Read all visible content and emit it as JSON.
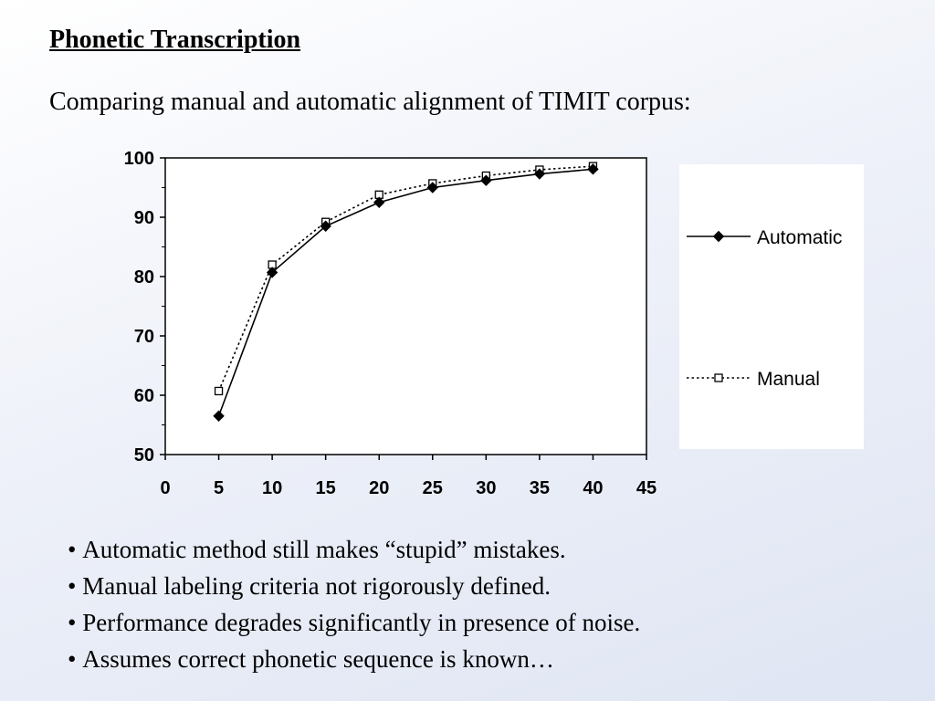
{
  "slide": {
    "title": "Phonetic Transcription",
    "subtitle": "Comparing manual and automatic alignment of TIMIT corpus:"
  },
  "chart_data": {
    "type": "line",
    "x": [
      5,
      10,
      15,
      20,
      25,
      30,
      35,
      40
    ],
    "series": [
      {
        "name": "Automatic",
        "values": [
          56.5,
          80.7,
          88.5,
          92.5,
          95.0,
          96.2,
          97.3,
          98.1
        ],
        "marker": "filled-diamond",
        "line": "solid",
        "color": "#000000"
      },
      {
        "name": "Manual",
        "values": [
          60.7,
          82.0,
          89.2,
          93.8,
          95.7,
          97.0,
          98.0,
          98.6
        ],
        "marker": "hollow-square",
        "line": "dotted",
        "color": "#000000"
      }
    ],
    "xlim": [
      0,
      45
    ],
    "ylim": [
      50,
      100
    ],
    "x_ticks": [
      0,
      5,
      10,
      15,
      20,
      25,
      30,
      35,
      40,
      45
    ],
    "y_ticks": [
      50,
      60,
      70,
      80,
      90,
      100
    ],
    "grid": false,
    "legend_position": "right",
    "plot_background": "#ffffff",
    "title": "",
    "xlabel": "",
    "ylabel": ""
  },
  "bullets": [
    "Automatic method still makes “stupid” mistakes.",
    "Manual labeling criteria not rigorously defined.",
    "Performance degrades significantly in presence of noise.",
    "Assumes correct phonetic sequence is known…"
  ]
}
